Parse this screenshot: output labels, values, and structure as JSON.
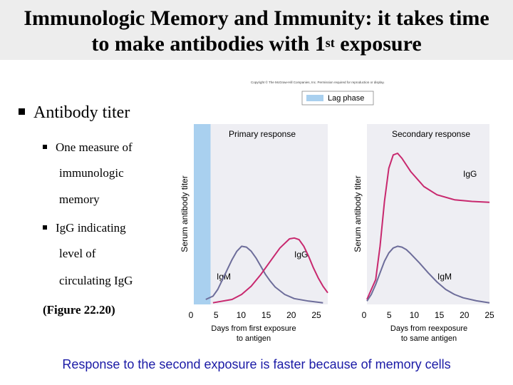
{
  "header": {
    "title_line1": "Immunologic Memory and Immunity: it takes time",
    "title_line2_pre": "to make antibodies with 1",
    "title_line2_sup": "st",
    "title_line2_post": " exposure"
  },
  "copyright": "Copyright © The McGraw-Hill Companies, Inc. Permission required for reproduction or display.",
  "bullets": {
    "main": "Antibody titer",
    "sub1_lines": [
      "One measure of",
      "immunologic",
      "memory"
    ],
    "sub2_lines": [
      "IgG indicating",
      "level of",
      "circulating IgG"
    ],
    "figure_ref": "(Figure 22.20)"
  },
  "footer": "Response to the second exposure is faster because of memory cells",
  "colors": {
    "plot_bg": "#eeeef3",
    "lag_phase": "#a9d0ef",
    "igg_curve": "#c8286e",
    "igm_curve": "#6d6d9a",
    "footer_text": "#1a1aa6"
  },
  "chart_data": [
    {
      "type": "line",
      "title": "Primary response",
      "xlabel": "Days from first exposure to antigen",
      "ylabel": "Serum antibody titer",
      "x_ticks": [
        "0",
        "5",
        "10",
        "15",
        "20",
        "25"
      ],
      "xlim": [
        0,
        28
      ],
      "ylim": [
        0,
        10
      ],
      "lag_phase": [
        0,
        3.5
      ],
      "legend": {
        "label": "Lag phase",
        "placement": "top-right"
      },
      "series": [
        {
          "name": "IgM",
          "x": [
            2.5,
            4,
            5,
            6,
            7,
            8,
            9,
            10,
            11,
            12,
            13,
            14,
            15,
            16,
            17,
            19,
            21,
            24,
            27
          ],
          "y": [
            0.3,
            0.5,
            0.9,
            1.5,
            2.1,
            2.7,
            3.2,
            3.5,
            3.45,
            3.2,
            2.8,
            2.3,
            1.8,
            1.4,
            1.05,
            0.6,
            0.35,
            0.2,
            0.1
          ]
        },
        {
          "name": "IgG",
          "x": [
            4,
            8,
            10,
            12,
            14,
            16,
            18,
            20,
            21,
            22,
            23,
            24,
            25,
            26,
            27,
            28
          ],
          "y": [
            0.1,
            0.3,
            0.6,
            1.1,
            1.8,
            2.6,
            3.4,
            3.95,
            4.0,
            3.9,
            3.5,
            2.9,
            2.2,
            1.6,
            1.1,
            0.7
          ]
        }
      ]
    },
    {
      "type": "line",
      "title": "Secondary response",
      "xlabel": "Days from reexposure to same antigen",
      "ylabel": "Serum antibody titer",
      "x_ticks": [
        "0",
        "5",
        "10",
        "15",
        "20",
        "25"
      ],
      "xlim": [
        0,
        28
      ],
      "ylim": [
        0,
        10
      ],
      "series": [
        {
          "name": "IgG",
          "x": [
            0,
            2,
            3,
            4,
            5,
            6,
            7,
            8,
            10,
            13,
            16,
            20,
            24,
            28
          ],
          "y": [
            0.3,
            1.5,
            3.5,
            6.2,
            8.2,
            9.0,
            9.1,
            8.8,
            8.0,
            7.1,
            6.6,
            6.3,
            6.2,
            6.15
          ]
        },
        {
          "name": "IgM",
          "x": [
            0,
            1,
            2,
            3,
            4,
            5,
            6,
            7,
            8,
            9,
            10,
            12,
            14,
            16,
            18,
            20,
            22,
            25,
            28
          ],
          "y": [
            0.2,
            0.6,
            1.2,
            1.9,
            2.6,
            3.1,
            3.4,
            3.5,
            3.45,
            3.3,
            3.05,
            2.5,
            1.9,
            1.35,
            0.9,
            0.6,
            0.4,
            0.22,
            0.1
          ]
        }
      ]
    }
  ]
}
